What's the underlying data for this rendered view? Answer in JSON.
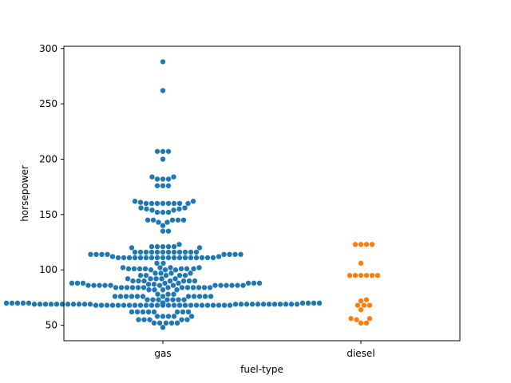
{
  "chart_data": {
    "type": "scatter",
    "subtype": "swarm",
    "xlabel": "fuel-type",
    "ylabel": "horsepower",
    "categories": [
      "gas",
      "diesel"
    ],
    "ylim": [
      36,
      302
    ],
    "yticks": [
      50,
      100,
      150,
      200,
      250,
      300
    ],
    "grid": false,
    "series": [
      {
        "category": "gas",
        "color": "#1f77b4",
        "values": [
          288,
          262,
          207,
          207,
          207,
          200,
          184,
          184,
          182,
          182,
          182,
          176,
          176,
          176,
          162,
          162,
          161,
          160,
          160,
          160,
          160,
          160,
          160,
          160,
          160,
          156,
          156,
          155,
          155,
          154,
          154,
          152,
          152,
          152,
          145,
          145,
          145,
          145,
          145,
          143,
          143,
          140,
          135,
          135,
          123,
          121,
          121,
          121,
          121,
          121,
          120,
          120,
          116,
          116,
          116,
          116,
          116,
          116,
          116,
          116,
          116,
          116,
          116,
          116,
          114,
          114,
          114,
          114,
          114,
          114,
          114,
          114,
          112,
          112,
          111,
          111,
          111,
          111,
          111,
          111,
          111,
          111,
          111,
          111,
          111,
          111,
          111,
          111,
          111,
          111,
          111,
          111,
          106,
          106,
          102,
          102,
          102,
          102,
          101,
          101,
          101,
          101,
          101,
          101,
          101,
          100,
          100,
          100,
          97,
          97,
          97,
          97,
          95,
          95,
          95,
          95,
          95,
          92,
          92,
          92,
          92,
          92,
          90,
          90,
          90,
          90,
          90,
          90,
          90,
          88,
          88,
          88,
          88,
          88,
          88,
          88,
          88,
          87,
          87,
          86,
          86,
          86,
          86,
          86,
          86,
          86,
          86,
          86,
          86,
          86,
          86,
          86,
          84,
          84,
          84,
          84,
          84,
          84,
          84,
          84,
          84,
          84,
          84,
          84,
          84,
          82,
          82,
          82,
          82,
          78,
          78,
          78,
          76,
          76,
          76,
          76,
          76,
          76,
          76,
          76,
          76,
          76,
          76,
          76,
          73,
          73,
          73,
          73,
          73,
          73,
          73,
          70,
          70,
          70,
          70,
          70,
          70,
          70,
          70,
          70,
          70,
          70,
          70,
          70,
          70,
          70,
          70,
          70,
          70,
          70,
          70,
          70,
          70,
          70,
          70,
          69,
          69,
          69,
          69,
          69,
          69,
          69,
          69,
          69,
          69,
          69,
          69,
          69,
          69,
          69,
          69,
          69,
          69,
          69,
          69,
          69,
          69,
          69,
          68,
          68,
          68,
          68,
          68,
          68,
          68,
          68,
          68,
          68,
          68,
          68,
          68,
          68,
          68,
          68,
          68,
          68,
          68,
          68,
          68,
          68,
          68,
          68,
          68,
          62,
          62,
          62,
          62,
          62,
          62,
          62,
          62,
          58,
          58,
          58,
          58,
          58,
          55,
          55,
          55,
          55,
          55,
          52,
          52,
          52,
          52,
          52,
          48
        ]
      },
      {
        "category": "diesel",
        "color": "#ff7f0e",
        "values": [
          123,
          123,
          123,
          123,
          106,
          95,
          95,
          95,
          95,
          95,
          95,
          73,
          72,
          68,
          68,
          68,
          64,
          56,
          56,
          55,
          52,
          52
        ]
      }
    ]
  }
}
